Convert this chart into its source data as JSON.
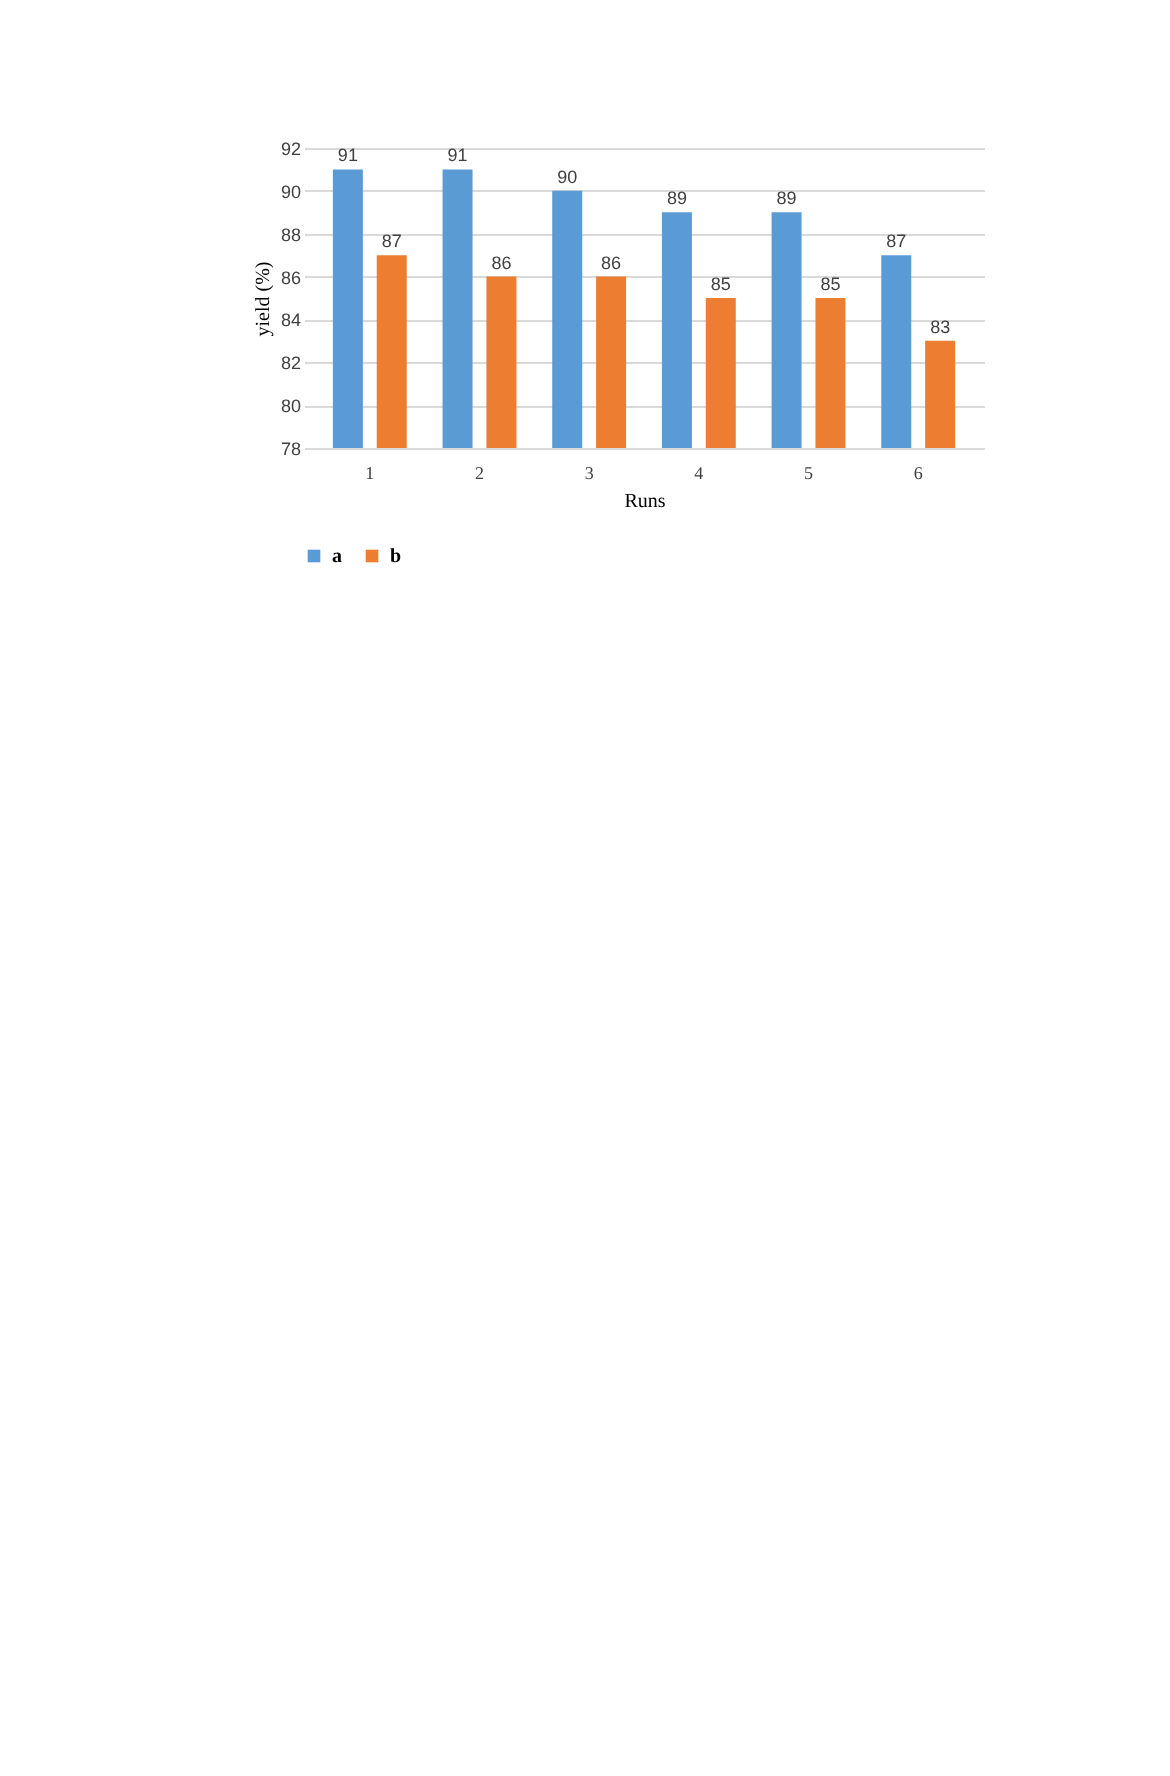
{
  "chart_data": {
    "type": "bar",
    "xlabel": "Runs",
    "ylabel": "yield (%)",
    "categories": [
      "1",
      "2",
      "3",
      "4",
      "5",
      "6"
    ],
    "series": [
      {
        "name": "a",
        "color": "#5b9bd5",
        "values": [
          91,
          91,
          90,
          89,
          89,
          87
        ]
      },
      {
        "name": "b",
        "color": "#ed7d31",
        "values": [
          87,
          86,
          86,
          85,
          85,
          83
        ]
      }
    ],
    "ylim": [
      78,
      92
    ],
    "yticks": [
      78,
      80,
      82,
      84,
      86,
      88,
      90,
      92
    ],
    "grid": "y",
    "legend": "bottom",
    "data_labels": true
  }
}
